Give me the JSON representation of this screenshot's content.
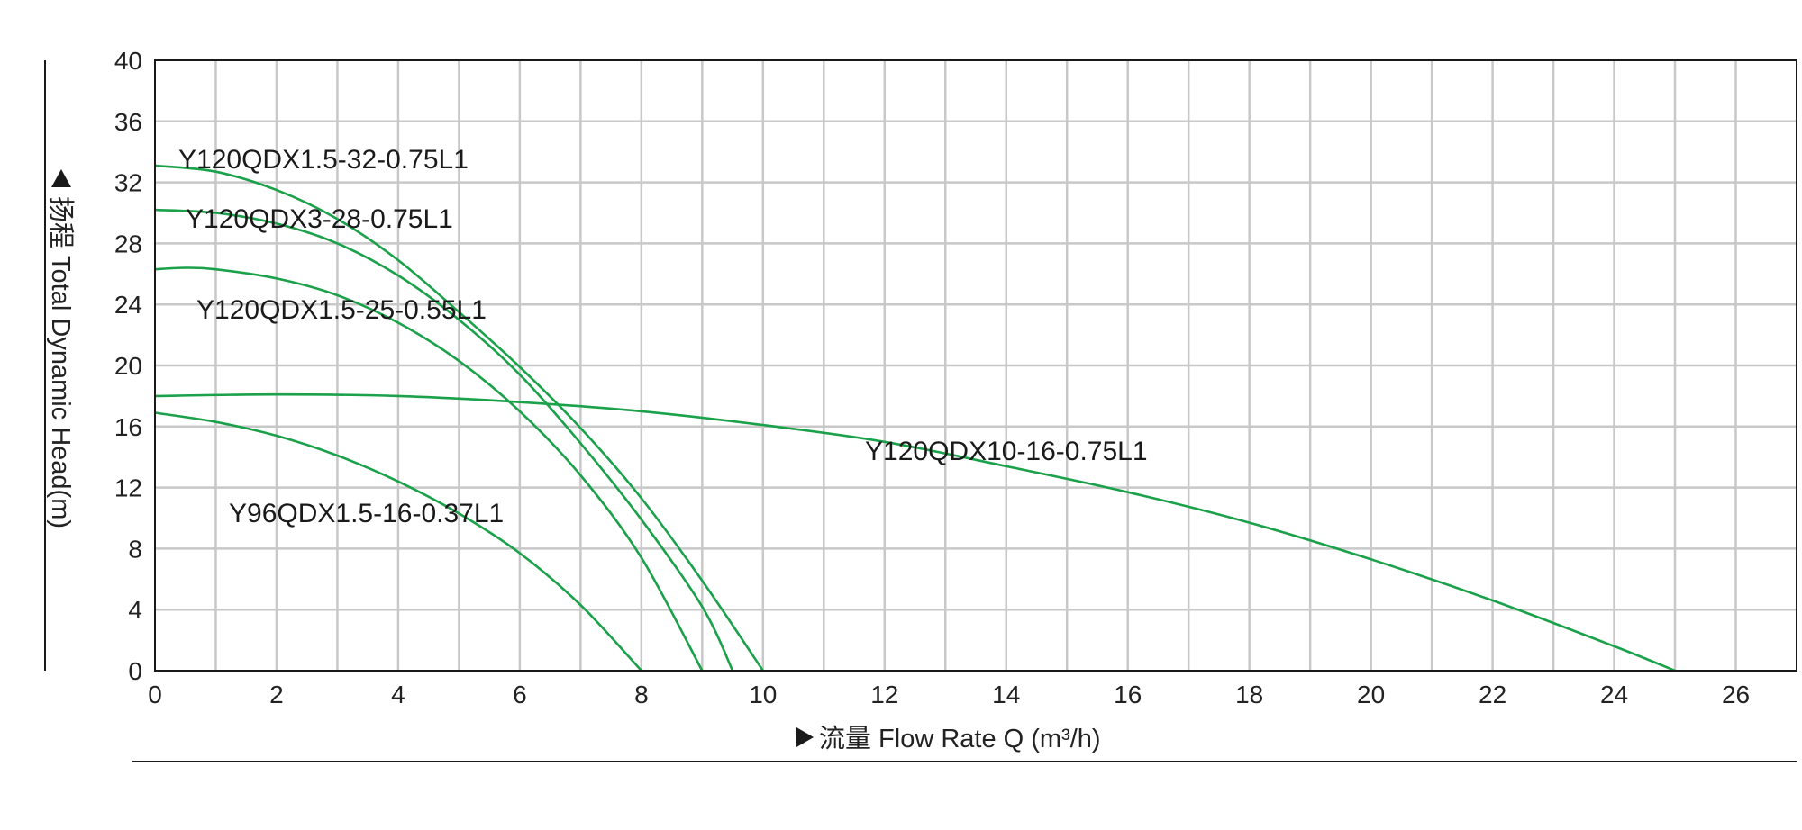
{
  "chart_data": {
    "type": "line",
    "xlabel": "流量 Flow Rate Q (m³/h)",
    "ylabel": "扬程 Total Dynamic Head(m)",
    "xlim": [
      0,
      27
    ],
    "ylim": [
      0,
      40
    ],
    "x_ticks": [
      "0",
      "2",
      "4",
      "6",
      "8",
      "10",
      "12",
      "14",
      "16",
      "18",
      "20",
      "22",
      "24",
      "26"
    ],
    "y_ticks": [
      "0",
      "4",
      "8",
      "12",
      "16",
      "20",
      "24",
      "28",
      "32",
      "36",
      "40"
    ],
    "grid": true,
    "line_color": "#1aa14a",
    "series": [
      {
        "name": "Y120QDX1.5-32-0.75L1",
        "x": [
          0,
          1,
          2,
          3,
          4,
          5,
          6,
          7,
          8,
          9,
          10
        ],
        "y": [
          33.1,
          32.7,
          31.5,
          29.6,
          26.9,
          23.5,
          19.9,
          15.9,
          11.3,
          5.9,
          0
        ]
      },
      {
        "name": "Y120QDX3-28-0.75L1",
        "x": [
          0,
          1,
          2,
          3,
          4,
          5,
          6,
          7,
          8,
          9,
          9.5
        ],
        "y": [
          30.2,
          30.0,
          29.3,
          28.0,
          25.9,
          23.0,
          19.4,
          14.9,
          9.9,
          4.2,
          0
        ]
      },
      {
        "name": "Y120QDX1.5-25-0.55L1",
        "x": [
          0,
          0.5,
          1,
          2,
          3,
          4,
          5,
          6,
          7,
          8,
          9
        ],
        "y": [
          26.3,
          26.4,
          26.3,
          25.7,
          24.6,
          22.8,
          20.3,
          17.0,
          12.8,
          7.4,
          0
        ]
      },
      {
        "name": "Y120QDX10-16-0.75L1",
        "x": [
          0,
          2,
          4,
          6,
          8,
          10,
          12,
          14,
          16,
          18,
          20,
          22,
          24,
          25
        ],
        "y": [
          18.0,
          18.1,
          18.0,
          17.6,
          17.0,
          16.1,
          15.0,
          13.4,
          11.7,
          9.7,
          7.3,
          4.6,
          1.6,
          0
        ]
      },
      {
        "name": "Y96QDX1.5-16-0.37L1",
        "x": [
          0,
          1,
          2,
          3,
          4,
          5,
          6,
          7,
          8
        ],
        "y": [
          16.9,
          16.3,
          15.4,
          14.1,
          12.4,
          10.3,
          7.7,
          4.3,
          0
        ]
      }
    ]
  }
}
